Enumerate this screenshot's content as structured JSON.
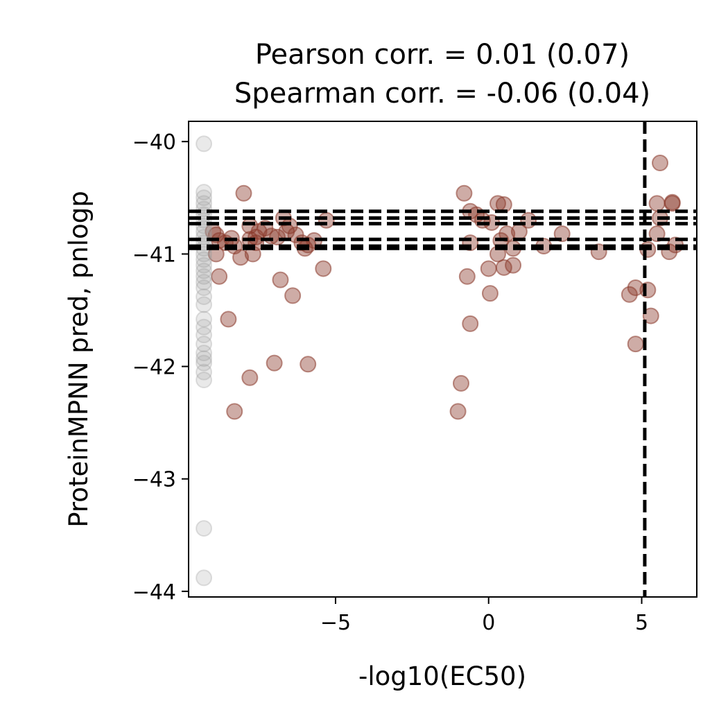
{
  "chart_data": {
    "type": "scatter",
    "title_lines": [
      "Pearson corr. = 0.01 (0.07)",
      "Spearman corr. = -0.06 (0.04)"
    ],
    "xlabel": "-log10(EC50)",
    "ylabel": "ProteinMPNN pred, pnlogp",
    "xlim": [
      -9.8,
      6.8
    ],
    "ylim": [
      -44.05,
      -39.82
    ],
    "xticks": [
      -5,
      0,
      5
    ],
    "xtick_labels": [
      "−5",
      "0",
      "5"
    ],
    "yticks": [
      -40,
      -41,
      -42,
      -43,
      -44
    ],
    "ytick_labels": [
      "−40",
      "−41",
      "−42",
      "−43",
      "−44"
    ],
    "grid": false,
    "legend": "none",
    "reference_lines": {
      "vertical_x": [
        5.1
      ],
      "horizontal_y": [
        -40.62,
        -40.68,
        -40.73,
        -40.87,
        -40.93,
        -40.95
      ],
      "style": "dashed",
      "color": "#000000"
    },
    "series": [
      {
        "color": "#8b3a2c",
        "points": [
          [
            -8.4,
            -40.86
          ],
          [
            -8.6,
            -40.9
          ],
          [
            -8.8,
            -40.88
          ],
          [
            -8.9,
            -40.83
          ],
          [
            -9.0,
            -40.8
          ],
          [
            -8.9,
            -41.0
          ],
          [
            -8.3,
            -40.93
          ],
          [
            -8.1,
            -41.03
          ],
          [
            -7.7,
            -41.0
          ],
          [
            -7.8,
            -40.87
          ],
          [
            -7.6,
            -40.85
          ],
          [
            -7.5,
            -40.8
          ],
          [
            -7.3,
            -40.77
          ],
          [
            -7.1,
            -40.84
          ],
          [
            -6.9,
            -40.85
          ],
          [
            -6.7,
            -40.68
          ],
          [
            -6.6,
            -40.8
          ],
          [
            -6.5,
            -40.75
          ],
          [
            -6.3,
            -40.83
          ],
          [
            -6.1,
            -40.9
          ],
          [
            -5.9,
            -40.92
          ],
          [
            -6.0,
            -40.95
          ],
          [
            -5.7,
            -40.88
          ],
          [
            -5.3,
            -40.7
          ],
          [
            -7.8,
            -40.75
          ],
          [
            -7.6,
            -40.9
          ],
          [
            -8.0,
            -40.46
          ],
          [
            -8.8,
            -41.2
          ],
          [
            -8.5,
            -41.58
          ],
          [
            -6.8,
            -41.23
          ],
          [
            -6.4,
            -41.37
          ],
          [
            -5.4,
            -41.13
          ],
          [
            -7.0,
            -41.97
          ],
          [
            -5.9,
            -41.98
          ],
          [
            -7.8,
            -42.1
          ],
          [
            -8.3,
            -42.4
          ],
          [
            -0.8,
            -40.46
          ],
          [
            -0.6,
            -40.62
          ],
          [
            -0.4,
            -40.65
          ],
          [
            -0.2,
            -40.7
          ],
          [
            0.1,
            -40.72
          ],
          [
            0.3,
            -40.55
          ],
          [
            0.5,
            -40.56
          ],
          [
            0.6,
            -40.82
          ],
          [
            0.8,
            -40.95
          ],
          [
            1.0,
            -40.8
          ],
          [
            1.3,
            -40.7
          ],
          [
            1.8,
            -40.93
          ],
          [
            2.4,
            -40.82
          ],
          [
            0.3,
            -41.0
          ],
          [
            0.5,
            -41.12
          ],
          [
            0.8,
            -41.1
          ],
          [
            0.0,
            -41.13
          ],
          [
            -0.6,
            -40.9
          ],
          [
            0.4,
            -40.88
          ],
          [
            -0.7,
            -41.2
          ],
          [
            0.05,
            -41.35
          ],
          [
            -0.6,
            -41.62
          ],
          [
            -0.9,
            -42.15
          ],
          [
            -1.0,
            -42.4
          ],
          [
            3.6,
            -40.98
          ],
          [
            4.6,
            -41.36
          ],
          [
            4.8,
            -41.8
          ],
          [
            4.8,
            -41.3
          ],
          [
            5.2,
            -40.96
          ],
          [
            5.2,
            -41.32
          ],
          [
            5.3,
            -41.55
          ],
          [
            5.5,
            -40.82
          ],
          [
            5.6,
            -40.68
          ],
          [
            5.5,
            -40.55
          ],
          [
            5.6,
            -40.19
          ],
          [
            5.9,
            -40.98
          ],
          [
            6.0,
            -40.55
          ],
          [
            6.1,
            -40.92
          ],
          [
            6.0,
            -40.54
          ]
        ]
      },
      {
        "color": "#9a9a9a",
        "points": [
          [
            -9.3,
            -40.02
          ],
          [
            -9.3,
            -40.45
          ],
          [
            -9.3,
            -40.5
          ],
          [
            -9.3,
            -40.55
          ],
          [
            -9.3,
            -40.6
          ],
          [
            -9.3,
            -40.65
          ],
          [
            -9.3,
            -40.7
          ],
          [
            -9.3,
            -40.75
          ],
          [
            -9.3,
            -40.8
          ],
          [
            -9.3,
            -40.85
          ],
          [
            -9.3,
            -40.9
          ],
          [
            -9.3,
            -40.95
          ],
          [
            -9.3,
            -41.0
          ],
          [
            -9.3,
            -41.05
          ],
          [
            -9.3,
            -41.1
          ],
          [
            -9.3,
            -41.15
          ],
          [
            -9.3,
            -41.2
          ],
          [
            -9.3,
            -41.25
          ],
          [
            -9.3,
            -41.3
          ],
          [
            -9.3,
            -41.38
          ],
          [
            -9.3,
            -41.45
          ],
          [
            -9.3,
            -41.58
          ],
          [
            -9.3,
            -41.65
          ],
          [
            -9.3,
            -41.72
          ],
          [
            -9.3,
            -41.8
          ],
          [
            -9.3,
            -41.88
          ],
          [
            -9.3,
            -41.93
          ],
          [
            -9.3,
            -41.97
          ],
          [
            -9.3,
            -42.05
          ],
          [
            -9.3,
            -42.12
          ],
          [
            -9.3,
            -43.44
          ],
          [
            -9.3,
            -43.88
          ]
        ]
      }
    ]
  }
}
